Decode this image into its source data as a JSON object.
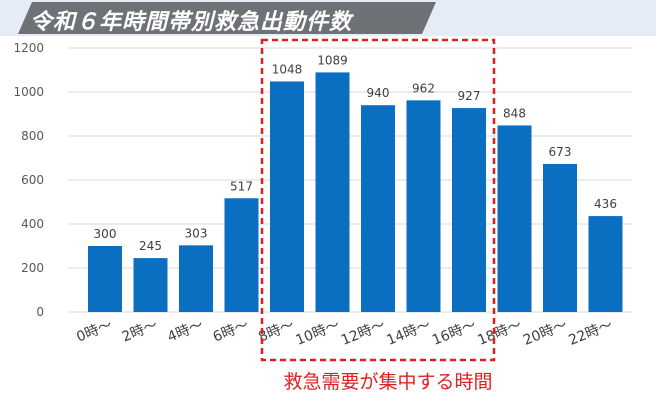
{
  "title": "令和６年時間帯別救急出動件数",
  "highlight_note": "救急需要が集中する時間",
  "colors": {
    "bar": "#0a6ec1",
    "highlight": "#e02020",
    "title_bg": "#6e7276",
    "grid": "#d9d9d9"
  },
  "chart_data": {
    "type": "bar",
    "title": "令和６年時間帯別救急出動件数",
    "categories": [
      "0時～",
      "2時～",
      "4時～",
      "6時～",
      "8時～",
      "10時～",
      "12時～",
      "14時～",
      "16時～",
      "18時～",
      "20時～",
      "22時～"
    ],
    "values": [
      300,
      245,
      303,
      517,
      1048,
      1089,
      940,
      962,
      927,
      848,
      673,
      436
    ],
    "yticks": [
      0,
      200,
      400,
      600,
      800,
      1000,
      1200
    ],
    "ylim": [
      0,
      1200
    ],
    "grid": true,
    "legend": "none",
    "highlight_categories": [
      "8時～",
      "10時～",
      "12時～",
      "14時～",
      "16時～"
    ]
  }
}
